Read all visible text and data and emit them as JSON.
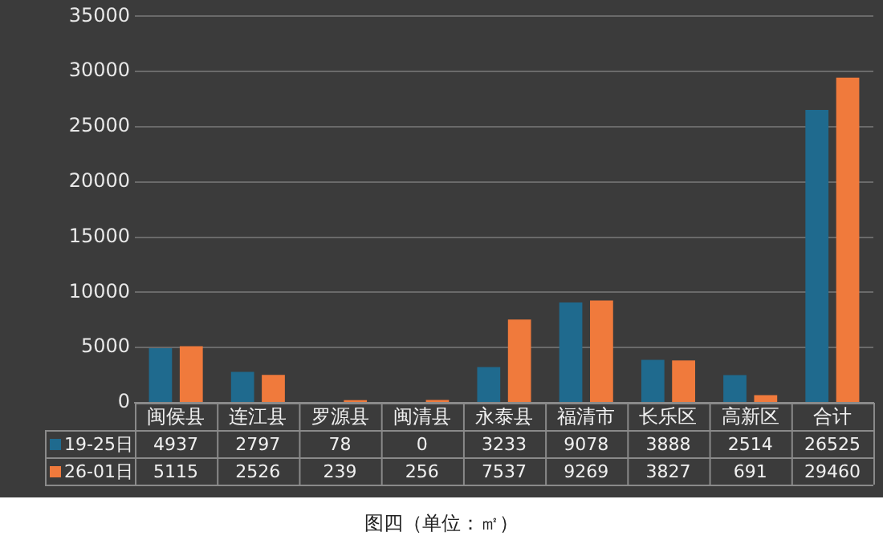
{
  "chart_data": {
    "type": "bar",
    "annotations": [
      "图四（单位：㎡）"
    ],
    "categories": [
      "闽侯县",
      "连江县",
      "罗源县",
      "闽清县",
      "永泰县",
      "福清市",
      "长乐区",
      "高新区",
      "合计"
    ],
    "series": [
      {
        "name": "19-25日",
        "color": "#1f6a8e",
        "values": [
          4937,
          2797,
          78,
          0,
          3233,
          9078,
          3888,
          2514,
          26525
        ]
      },
      {
        "name": "26-01日",
        "color": "#f07a3c",
        "values": [
          5115,
          2526,
          239,
          256,
          7537,
          9269,
          3827,
          691,
          29460
        ]
      }
    ],
    "ylim": [
      0,
      35000
    ],
    "yticks": [
      0,
      5000,
      10000,
      15000,
      20000,
      25000,
      30000,
      35000
    ],
    "grid": "y",
    "legend": "bottom left",
    "data_labels": true
  }
}
